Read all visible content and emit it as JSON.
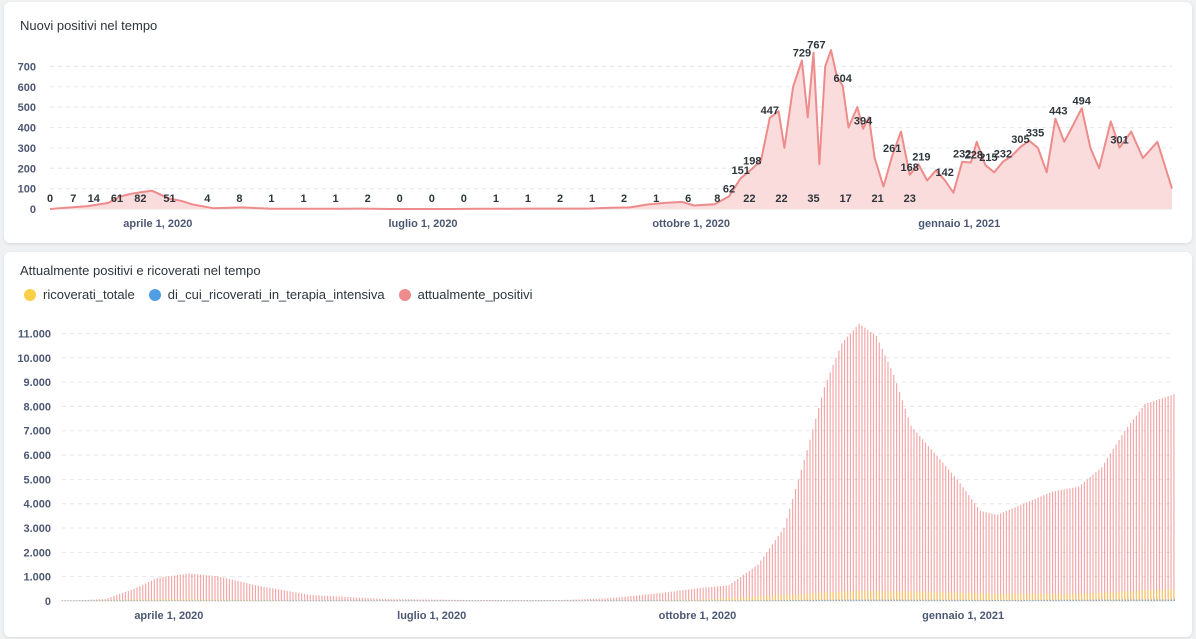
{
  "chart_data": [
    {
      "type": "area",
      "title": "Nuovi positivi nel tempo",
      "x_start": "2020-02-24",
      "x_end": "2021-03-15",
      "x_ticks": [
        "aprile 1, 2020",
        "luglio 1, 2020",
        "ottobre 1, 2020",
        "gennaio 1, 2021"
      ],
      "x_tick_dates": [
        "2020-04-01",
        "2020-07-01",
        "2020-10-01",
        "2021-01-01"
      ],
      "y_ticks": [
        "0",
        "100",
        "200",
        "300",
        "400",
        "500",
        "600",
        "700"
      ],
      "ylim": [
        0,
        800
      ],
      "color": "#ee8b8b",
      "fill": "#fbdcdc",
      "control_points": [
        [
          "2020-02-24",
          0
        ],
        [
          "2020-03-01",
          7
        ],
        [
          "2020-03-08",
          14
        ],
        [
          "2020-03-15",
          30
        ],
        [
          "2020-03-19",
          61
        ],
        [
          "2020-03-23",
          75
        ],
        [
          "2020-03-26",
          82
        ],
        [
          "2020-03-30",
          90
        ],
        [
          "2020-04-02",
          70
        ],
        [
          "2020-04-05",
          51
        ],
        [
          "2020-04-09",
          40
        ],
        [
          "2020-04-13",
          22
        ],
        [
          "2020-04-20",
          4
        ],
        [
          "2020-04-30",
          8
        ],
        [
          "2020-05-10",
          1
        ],
        [
          "2020-05-20",
          1
        ],
        [
          "2020-06-01",
          1
        ],
        [
          "2020-06-10",
          2
        ],
        [
          "2020-06-20",
          0
        ],
        [
          "2020-06-30",
          0
        ],
        [
          "2020-07-10",
          0
        ],
        [
          "2020-07-20",
          1
        ],
        [
          "2020-07-30",
          1
        ],
        [
          "2020-08-08",
          2
        ],
        [
          "2020-08-18",
          2
        ],
        [
          "2020-08-27",
          2
        ],
        [
          "2020-09-03",
          6
        ],
        [
          "2020-09-10",
          8
        ],
        [
          "2020-09-16",
          22
        ],
        [
          "2020-09-22",
          30
        ],
        [
          "2020-09-28",
          35
        ],
        [
          "2020-10-02",
          17
        ],
        [
          "2020-10-06",
          21
        ],
        [
          "2020-10-09",
          23
        ],
        [
          "2020-10-14",
          62
        ],
        [
          "2020-10-18",
          151
        ],
        [
          "2020-10-22",
          198
        ],
        [
          "2020-10-25",
          240
        ],
        [
          "2020-10-28",
          447
        ],
        [
          "2020-10-31",
          480
        ],
        [
          "2020-11-02",
          300
        ],
        [
          "2020-11-05",
          600
        ],
        [
          "2020-11-08",
          729
        ],
        [
          "2020-11-10",
          450
        ],
        [
          "2020-11-12",
          767
        ],
        [
          "2020-11-14",
          220
        ],
        [
          "2020-11-16",
          700
        ],
        [
          "2020-11-18",
          780
        ],
        [
          "2020-11-20",
          650
        ],
        [
          "2020-11-22",
          604
        ],
        [
          "2020-11-24",
          400
        ],
        [
          "2020-11-27",
          500
        ],
        [
          "2020-11-29",
          394
        ],
        [
          "2020-12-01",
          450
        ],
        [
          "2020-12-03",
          250
        ],
        [
          "2020-12-06",
          110
        ],
        [
          "2020-12-09",
          261
        ],
        [
          "2020-12-12",
          380
        ],
        [
          "2020-12-15",
          168
        ],
        [
          "2020-12-18",
          219
        ],
        [
          "2020-12-21",
          140
        ],
        [
          "2020-12-24",
          190
        ],
        [
          "2020-12-27",
          142
        ],
        [
          "2020-12-30",
          80
        ],
        [
          "2021-01-02",
          232
        ],
        [
          "2021-01-05",
          228
        ],
        [
          "2021-01-07",
          330
        ],
        [
          "2021-01-10",
          215
        ],
        [
          "2021-01-13",
          180
        ],
        [
          "2021-01-16",
          232
        ],
        [
          "2021-01-19",
          260
        ],
        [
          "2021-01-22",
          305
        ],
        [
          "2021-01-25",
          335
        ],
        [
          "2021-01-28",
          300
        ],
        [
          "2021-01-31",
          180
        ],
        [
          "2021-02-03",
          443
        ],
        [
          "2021-02-06",
          330
        ],
        [
          "2021-02-09",
          410
        ],
        [
          "2021-02-12",
          494
        ],
        [
          "2021-02-15",
          300
        ],
        [
          "2021-02-18",
          200
        ],
        [
          "2021-02-22",
          430
        ],
        [
          "2021-02-25",
          301
        ],
        [
          "2021-03-01",
          380
        ],
        [
          "2021-03-05",
          250
        ],
        [
          "2021-03-10",
          330
        ],
        [
          "2021-03-15",
          100
        ]
      ],
      "data_labels": [
        [
          "2020-02-24",
          0,
          "0"
        ],
        [
          "2020-03-03",
          7,
          "7"
        ],
        [
          "2020-03-10",
          14,
          "14"
        ],
        [
          "2020-03-18",
          61,
          "61"
        ],
        [
          "2020-03-26",
          82,
          "82"
        ],
        [
          "2020-04-05",
          51,
          "51"
        ],
        [
          "2020-04-18",
          4,
          "4"
        ],
        [
          "2020-04-29",
          8,
          "8"
        ],
        [
          "2020-05-10",
          1,
          "1"
        ],
        [
          "2020-05-21",
          1,
          "1"
        ],
        [
          "2020-06-01",
          1,
          "1"
        ],
        [
          "2020-06-12",
          2,
          "2"
        ],
        [
          "2020-06-23",
          0,
          "0"
        ],
        [
          "2020-07-04",
          0,
          "0"
        ],
        [
          "2020-07-15",
          0,
          "0"
        ],
        [
          "2020-07-26",
          1,
          "1"
        ],
        [
          "2020-08-06",
          1,
          "1"
        ],
        [
          "2020-08-17",
          2,
          "2"
        ],
        [
          "2020-08-28",
          1,
          "1"
        ],
        [
          "2020-09-08",
          2,
          "2"
        ],
        [
          "2020-09-19",
          1,
          "1"
        ],
        [
          "2020-09-30",
          6,
          "6"
        ],
        [
          "2020-10-10",
          8,
          "8"
        ],
        [
          "2020-10-21",
          22,
          "22"
        ],
        [
          "2020-11-01",
          22,
          "22"
        ],
        [
          "2020-11-12",
          35,
          "35"
        ],
        [
          "2020-11-23",
          17,
          "17"
        ],
        [
          "2020-12-04",
          21,
          "21"
        ],
        [
          "2020-12-15",
          23,
          "23"
        ]
      ],
      "data_labels_upper": [
        [
          "2020-10-14",
          62,
          "62"
        ],
        [
          "2020-10-18",
          151,
          "151"
        ],
        [
          "2020-10-22",
          198,
          "198"
        ],
        [
          "2020-10-28",
          447,
          "447"
        ],
        [
          "2020-11-08",
          729,
          "729"
        ],
        [
          "2020-11-13",
          767,
          "767"
        ],
        [
          "2020-11-22",
          604,
          "604"
        ],
        [
          "2020-11-29",
          394,
          "394"
        ],
        [
          "2020-12-09",
          261,
          "261"
        ],
        [
          "2020-12-15",
          168,
          "168"
        ],
        [
          "2020-12-19",
          219,
          "219"
        ],
        [
          "2020-12-27",
          142,
          "142"
        ],
        [
          "2021-01-02",
          232,
          "232"
        ],
        [
          "2021-01-06",
          228,
          "228"
        ],
        [
          "2021-01-11",
          215,
          "215"
        ],
        [
          "2021-01-16",
          232,
          "232"
        ],
        [
          "2021-01-22",
          305,
          "305"
        ],
        [
          "2021-01-27",
          335,
          "335"
        ],
        [
          "2021-02-04",
          443,
          "443"
        ],
        [
          "2021-02-12",
          494,
          "494"
        ],
        [
          "2021-02-25",
          301,
          "301"
        ]
      ]
    },
    {
      "type": "bar",
      "title": "Attualmente positivi e ricoverati nel tempo",
      "legend": [
        "ricoverati_totale",
        "di_cui_ricoverati_in_terapia_intensiva",
        "attualmente_positivi"
      ],
      "legend_placement": "top-left",
      "x_start": "2020-02-24",
      "x_end": "2021-03-15",
      "x_ticks": [
        "aprile 1, 2020",
        "luglio 1, 2020",
        "ottobre 1, 2020",
        "gennaio 1, 2021"
      ],
      "x_tick_dates": [
        "2020-04-01",
        "2020-07-01",
        "2020-10-01",
        "2021-01-01"
      ],
      "y_ticks": [
        "0",
        "1.000",
        "2.000",
        "3.000",
        "4.000",
        "5.000",
        "6.000",
        "7.000",
        "8.000",
        "9.000",
        "10.000",
        "11.000"
      ],
      "ylim": [
        0,
        11800
      ],
      "series": [
        {
          "name": "ricoverati_totale",
          "color": "#f9cf48",
          "control_points": [
            [
              "2020-02-24",
              5
            ],
            [
              "2020-04-01",
              90
            ],
            [
              "2020-05-15",
              20
            ],
            [
              "2020-09-01",
              10
            ],
            [
              "2020-10-01",
              60
            ],
            [
              "2020-11-01",
              260
            ],
            [
              "2020-11-25",
              420
            ],
            [
              "2020-12-20",
              380
            ],
            [
              "2021-01-10",
              300
            ],
            [
              "2021-02-10",
              300
            ],
            [
              "2021-03-15",
              500
            ]
          ]
        },
        {
          "name": "di_cui_ricoverati_in_terapia_intensiva",
          "color": "#509ee3",
          "control_points": [
            [
              "2020-02-24",
              1
            ],
            [
              "2020-04-01",
              15
            ],
            [
              "2020-06-01",
              2
            ],
            [
              "2020-10-01",
              8
            ],
            [
              "2020-11-25",
              60
            ],
            [
              "2021-01-15",
              40
            ],
            [
              "2021-03-15",
              70
            ]
          ]
        },
        {
          "name": "attualmente_positivi",
          "color": "#ee8b8b",
          "control_points": [
            [
              "2020-02-24",
              0
            ],
            [
              "2020-03-10",
              80
            ],
            [
              "2020-03-20",
              500
            ],
            [
              "2020-03-28",
              950
            ],
            [
              "2020-04-08",
              1130
            ],
            [
              "2020-04-18",
              1020
            ],
            [
              "2020-05-01",
              650
            ],
            [
              "2020-05-20",
              250
            ],
            [
              "2020-06-15",
              80
            ],
            [
              "2020-07-15",
              40
            ],
            [
              "2020-08-15",
              40
            ],
            [
              "2020-09-01",
              120
            ],
            [
              "2020-09-20",
              350
            ],
            [
              "2020-10-01",
              520
            ],
            [
              "2020-10-12",
              650
            ],
            [
              "2020-10-22",
              1500
            ],
            [
              "2020-10-31",
              3000
            ],
            [
              "2020-11-08",
              6200
            ],
            [
              "2020-11-14",
              8800
            ],
            [
              "2020-11-20",
              10600
            ],
            [
              "2020-11-26",
              11400
            ],
            [
              "2020-12-02",
              10900
            ],
            [
              "2020-12-08",
              9300
            ],
            [
              "2020-12-14",
              7200
            ],
            [
              "2020-12-22",
              6100
            ],
            [
              "2020-12-30",
              5000
            ],
            [
              "2021-01-07",
              3700
            ],
            [
              "2021-01-13",
              3550
            ],
            [
              "2021-01-20",
              3900
            ],
            [
              "2021-02-01",
              4500
            ],
            [
              "2021-02-10",
              4700
            ],
            [
              "2021-02-18",
              5500
            ],
            [
              "2021-02-26",
              7000
            ],
            [
              "2021-03-05",
              8100
            ],
            [
              "2021-03-15",
              8500
            ]
          ]
        }
      ]
    }
  ]
}
